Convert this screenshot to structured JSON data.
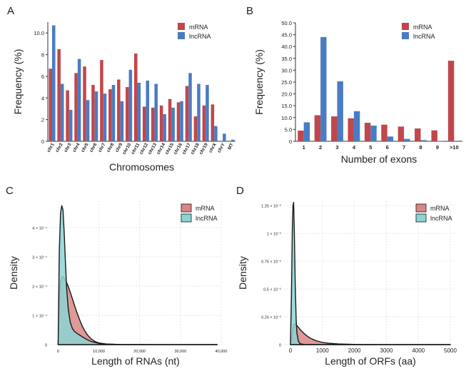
{
  "colors": {
    "mrna": "#c0474a",
    "lncrna": "#4a7cc4",
    "mrna_fill": "#d98785",
    "lncrna_fill": "#8dd3d3",
    "grid": "#e6e6e6",
    "axis": "#333333"
  },
  "chart_data": [
    {
      "panel_label": "A",
      "type": "bar",
      "title": "",
      "xlabel": "Chromosomes",
      "ylabel": "Frequency (%)",
      "ylim": [
        0,
        11
      ],
      "yticks": [
        0,
        2,
        4,
        6,
        8,
        10
      ],
      "ytick_labels": [
        "0",
        "2",
        "4",
        "6",
        "8",
        "10.0"
      ],
      "grid": false,
      "legend": "top-right",
      "categories": [
        "chr1",
        "chr2",
        "chr3",
        "chr4",
        "chr5",
        "chr6",
        "chr7",
        "chr8",
        "chr9",
        "chr10",
        "chr11",
        "chr12",
        "chr13",
        "chr14",
        "chr15",
        "chr16",
        "chr17",
        "chr18",
        "chr19",
        "chrX",
        "chrY",
        "MT"
      ],
      "series": [
        {
          "name": "mRNA",
          "color": "#c0474a",
          "values": [
            6.7,
            8.5,
            4.7,
            6.3,
            6.9,
            5.2,
            7.5,
            4.8,
            5.7,
            5.0,
            8.1,
            3.2,
            3.1,
            3.3,
            3.9,
            3.6,
            5.1,
            2.3,
            3.3,
            3.4,
            0,
            0
          ]
        },
        {
          "name": "lncRNA",
          "color": "#4a7cc4",
          "values": [
            10.7,
            5.3,
            2.9,
            7.6,
            3.8,
            4.6,
            4.4,
            5.2,
            3.7,
            6.6,
            5.4,
            5.6,
            5.3,
            2.5,
            3.1,
            3.7,
            6.3,
            5.3,
            5.2,
            1.4,
            0.7,
            0.15
          ]
        }
      ]
    },
    {
      "panel_label": "B",
      "type": "bar",
      "title": "",
      "xlabel": "Number of exons",
      "ylabel": "Frequency (%)",
      "ylim": [
        0,
        50
      ],
      "yticks": [
        0,
        5,
        10,
        15,
        20,
        25,
        30,
        35,
        40,
        45,
        50
      ],
      "ytick_labels": [
        "0",
        "5.0",
        "10.0",
        "15.0",
        "20.0",
        "25.0",
        "30.0",
        "35.0",
        "40.0",
        "45.0",
        "50.0"
      ],
      "grid": false,
      "legend": "top-right",
      "categories": [
        "1",
        "2",
        "3",
        "4",
        "5",
        "6",
        "7",
        "8",
        "9",
        ">10"
      ],
      "series": [
        {
          "name": "mRNA",
          "color": "#c0474a",
          "values": [
            4.5,
            11.0,
            10.5,
            9.7,
            7.8,
            7.0,
            6.2,
            5.4,
            4.6,
            34.0
          ]
        },
        {
          "name": "lncRNA",
          "color": "#4a7cc4",
          "values": [
            8.0,
            44.0,
            25.3,
            12.7,
            6.6,
            2.0,
            1.0,
            0.5,
            0.1,
            0.0
          ]
        }
      ]
    },
    {
      "panel_label": "C",
      "type": "area",
      "title": "",
      "xlabel": "Length of RNAs (nt)",
      "ylabel": "Density",
      "xlim": [
        -2000,
        40000
      ],
      "ylim": [
        0,
        0.00049
      ],
      "xticks": [
        0,
        10000,
        20000,
        30000,
        40000
      ],
      "xtick_labels": [
        "0",
        "10,000",
        "20,000",
        "30,000",
        "40,000"
      ],
      "yticks": [
        0,
        0.0001,
        0.0002,
        0.0003,
        0.0004
      ],
      "ytick_labels": [
        "0",
        "1 × 10⁻⁴",
        "2 × 10⁻⁴",
        "3 × 10⁻⁴",
        "4 × 10⁻⁴"
      ],
      "grid": true,
      "legend": "top-right",
      "series": [
        {
          "name": "mRNA",
          "fill": "#d98785",
          "x": [
            0,
            500,
            1000,
            1500,
            2000,
            2500,
            3000,
            3500,
            4000,
            4500,
            5000,
            5500,
            6000,
            6500,
            7000,
            7500,
            8000,
            9000,
            10000,
            12000,
            15000,
            20000,
            25000,
            30000,
            35000,
            39000
          ],
          "y": [
            5e-07,
            0.00021,
            0.000233,
            0.000228,
            0.000215,
            0.000198,
            0.000178,
            0.000157,
            0.000135,
            0.000114,
            9.5e-05,
            7.7e-05,
            6.1e-05,
            4.8e-05,
            3.7e-05,
            2.8e-05,
            2.1e-05,
            1.1e-05,
            5.5e-06,
            1.8e-06,
            5e-07,
            2e-07,
            1e-07,
            5e-08,
            2e-08,
            0
          ]
        },
        {
          "name": "lncRNA",
          "fill": "#8dd3d3",
          "x": [
            0,
            300,
            600,
            900,
            1200,
            1500,
            1800,
            2100,
            2500,
            3000,
            3500,
            4000,
            5000,
            6000,
            7000,
            8000,
            10000,
            12000,
            15000,
            20000,
            25000,
            30000,
            35000,
            39000
          ],
          "y": [
            5e-07,
            0.00032,
            0.00045,
            0.000475,
            0.00046,
            0.00038,
            0.00028,
            0.00019,
            0.00012,
            7.5e-05,
            5.5e-05,
            4.5e-05,
            3.5e-05,
            2.6e-05,
            1.8e-05,
            1.1e-05,
            4e-06,
            1.5e-06,
            5e-07,
            3e-07,
            1e-07,
            5e-08,
            2e-08,
            0
          ]
        }
      ]
    },
    {
      "panel_label": "D",
      "type": "area",
      "title": "",
      "xlabel": "Length of ORFs (aa)",
      "ylabel": "Density",
      "xlim": [
        -200,
        5200
      ],
      "ylim": [
        0,
        0.0129
      ],
      "xticks": [
        0,
        1000,
        2000,
        3000,
        4000,
        5000
      ],
      "xtick_labels": [
        "0",
        "1000",
        "2000",
        "3000",
        "4000",
        "5000"
      ],
      "yticks": [
        0,
        0.0025,
        0.005,
        0.0075,
        0.01,
        0.0125
      ],
      "ytick_labels": [
        "0",
        "0.25 × 10⁻²",
        "0.5 × 10⁻²",
        "0.75 × 10⁻²",
        "1 × 10⁻²",
        "1.25 × 10⁻²"
      ],
      "grid": true,
      "legend": "top-right",
      "series": [
        {
          "name": "mRNA",
          "fill": "#d98785",
          "x": [
            0,
            50,
            100,
            150,
            200,
            250,
            300,
            400,
            500,
            600,
            700,
            800,
            1000,
            1200,
            1500,
            2000,
            2500,
            3000,
            4000,
            5000
          ],
          "y": [
            2e-05,
            0.00085,
            0.00178,
            0.00185,
            0.00172,
            0.00155,
            0.00137,
            0.00107,
            0.00082,
            0.00062,
            0.00047,
            0.00035,
            0.0002,
            0.00012,
            6e-05,
            2e-05,
            1e-05,
            4e-06,
            1e-06,
            0
          ],
          "line": "#222222"
        },
        {
          "name": "lncRNA",
          "fill": "#8dd3d3",
          "x": [
            0,
            30,
            60,
            80,
            100,
            120,
            150,
            180,
            200,
            250,
            300,
            400,
            500,
            1000,
            2000,
            5000
          ],
          "y": [
            2e-05,
            0.004,
            0.0105,
            0.0125,
            0.0128,
            0.0105,
            0.0055,
            0.0022,
            0.0011,
            0.0003,
            9e-05,
            2e-05,
            5e-06,
            1e-06,
            0,
            0
          ],
          "line": "#222222"
        }
      ]
    }
  ]
}
